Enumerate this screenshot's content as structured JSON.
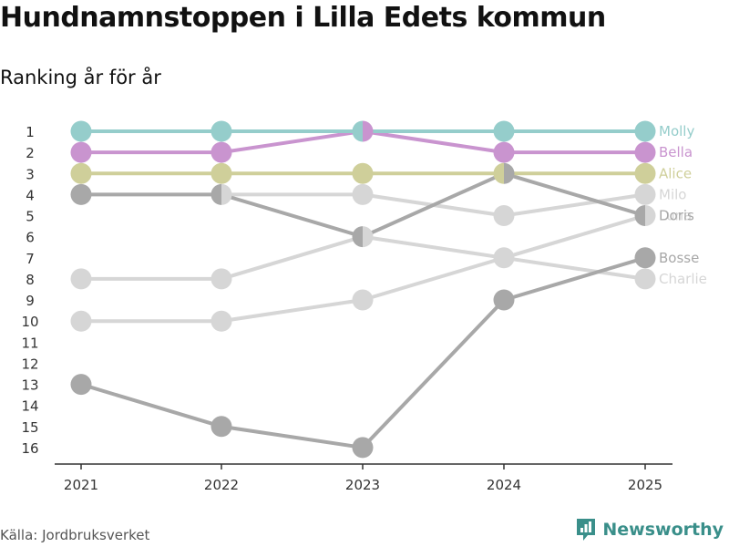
{
  "header": {
    "title": "Hundnamnstoppen i Lilla Edets kommun",
    "subtitle": "Ranking år för år"
  },
  "footer": {
    "source": "Källa: Jordbruksverket",
    "brand": "Newsworthy",
    "brand_icon": "newsworthy-logo-icon"
  },
  "colors": {
    "teal": "#95cdcb",
    "purple": "#c994cf",
    "olive": "#cfcf9a",
    "gray": "#a8a8a8",
    "light_gray": "#d6d6d6",
    "brand": "#3a8f8a"
  },
  "chart_data": {
    "type": "line",
    "title": "Hundnamnstoppen i Lilla Edets kommun",
    "subtitle": "Ranking år för år",
    "x": [
      "2021",
      "2022",
      "2023",
      "2024",
      "2025"
    ],
    "y_ticks": [
      1,
      2,
      3,
      4,
      5,
      6,
      7,
      8,
      9,
      10,
      11,
      12,
      13,
      14,
      15,
      16
    ],
    "ylim": [
      1,
      16
    ],
    "y_reversed": true,
    "xlabel": "",
    "ylabel": "",
    "grid": false,
    "legend": "labels at line ends (right)",
    "series": [
      {
        "name": "Charlie",
        "color": "#d6d6d6",
        "values": [
          8,
          8,
          6,
          7,
          8
        ]
      },
      {
        "name": "Luna",
        "color": "#d6d6d6",
        "values": [
          10,
          10,
          9,
          7,
          5
        ]
      },
      {
        "name": "Milo",
        "color": "#d6d6d6",
        "values": [
          null,
          4,
          4,
          5,
          4
        ]
      },
      {
        "name": "Bosse",
        "color": "#a8a8a8",
        "values": [
          13,
          15,
          16,
          9,
          7
        ]
      },
      {
        "name": "Doris",
        "color": "#a8a8a8",
        "values": [
          4,
          4,
          6,
          3,
          5
        ]
      },
      {
        "name": "Alice",
        "color": "#cfcf9a",
        "values": [
          3,
          3,
          3,
          3,
          3
        ]
      },
      {
        "name": "Bella",
        "color": "#c994cf",
        "values": [
          2,
          2,
          1,
          2,
          2
        ]
      },
      {
        "name": "Molly",
        "color": "#95cdcb",
        "values": [
          1,
          1,
          1,
          1,
          1
        ]
      }
    ]
  }
}
